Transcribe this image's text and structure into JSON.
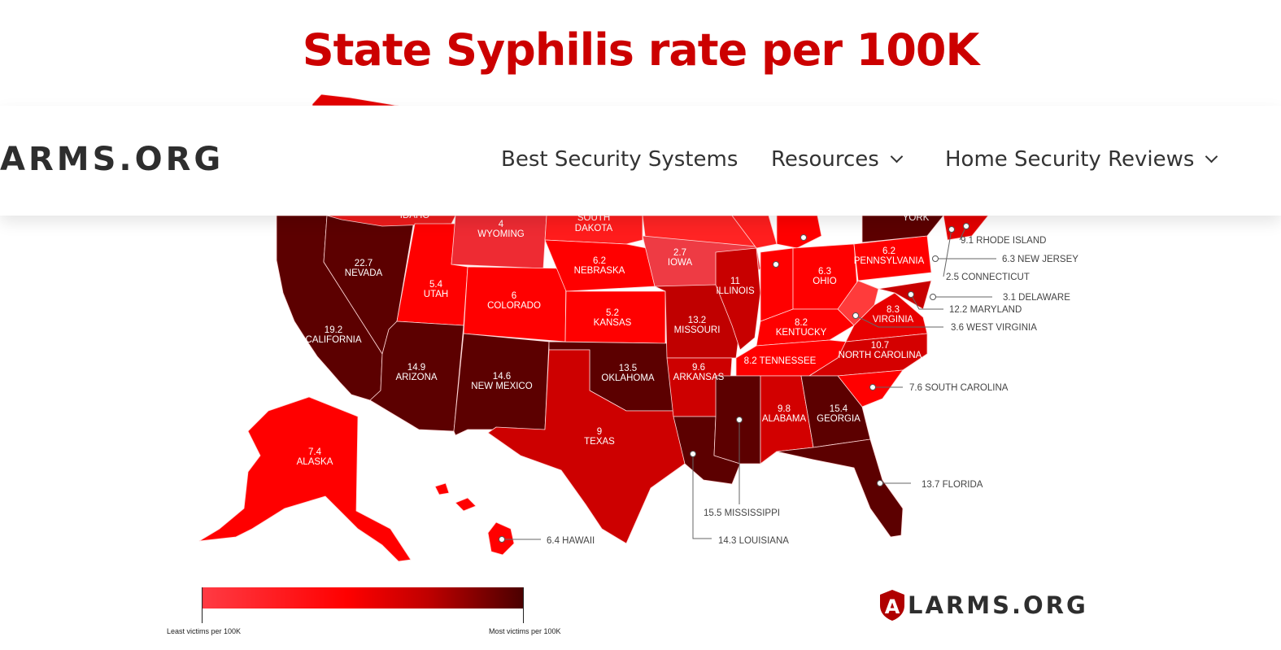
{
  "title": "State Syphilis rate per 100K",
  "nav": {
    "logo": "ARMS.ORG",
    "items": [
      {
        "label": "Best Security Systems",
        "has_dropdown": false
      },
      {
        "label": "Resources",
        "has_dropdown": true
      },
      {
        "label": "Home Security Reviews",
        "has_dropdown": true
      }
    ]
  },
  "legend": {
    "min_label": "Least victims per 100K",
    "max_label": "Most victims per 100K",
    "colors": [
      "#ff3b44",
      "#ff0000",
      "#c00000",
      "#4a0000"
    ]
  },
  "footer_logo": {
    "letter": "A",
    "text": "LARMS.ORG"
  },
  "map_labels": {
    "idaho": "IDAHO",
    "new_york": "YORK",
    "south_dakota_value": "SOUTH",
    "south_dakota_name": "DAKOTA"
  },
  "chart_data": {
    "type": "choropleth",
    "title": "State Syphilis rate per 100K",
    "states": [
      {
        "name": "WYOMING",
        "value": "4"
      },
      {
        "name": "NEVADA",
        "value": "22.7"
      },
      {
        "name": "UTAH",
        "value": "5.4"
      },
      {
        "name": "COLORADO",
        "value": "6"
      },
      {
        "name": "NEBRASKA",
        "value": "6.2"
      },
      {
        "name": "IOWA",
        "value": "2.7"
      },
      {
        "name": "ILLINOIS",
        "value": "11"
      },
      {
        "name": "OHIO",
        "value": "6.3"
      },
      {
        "name": "PENNSYLVANIA",
        "value": "6.2"
      },
      {
        "name": "CALIFORNIA",
        "value": "19.2"
      },
      {
        "name": "KANSAS",
        "value": "5.2"
      },
      {
        "name": "MISSOURI",
        "value": "13.2"
      },
      {
        "name": "KENTUCKY",
        "value": "8.2"
      },
      {
        "name": "VIRGINIA",
        "value": "8.3"
      },
      {
        "name": "ARIZONA",
        "value": "14.9"
      },
      {
        "name": "NEW MEXICO",
        "value": "14.6"
      },
      {
        "name": "OKLAHOMA",
        "value": "13.5"
      },
      {
        "name": "ARKANSAS",
        "value": "9.6"
      },
      {
        "name": "TENNESSEE",
        "value": "8.2"
      },
      {
        "name": "NORTH CAROLINA",
        "value": "10.7"
      },
      {
        "name": "TEXAS",
        "value": "9"
      },
      {
        "name": "ALABAMA",
        "value": "9.8"
      },
      {
        "name": "GEORGIA",
        "value": "15.4"
      },
      {
        "name": "ALASKA",
        "value": "7.4"
      }
    ],
    "callouts": [
      {
        "name": "RHODE ISLAND",
        "value": "9.1"
      },
      {
        "name": "NEW JERSEY",
        "value": "6.3"
      },
      {
        "name": "CONNECTICUT",
        "value": "2.5"
      },
      {
        "name": "DELAWARE",
        "value": "3.1"
      },
      {
        "name": "MARYLAND",
        "value": "12.2"
      },
      {
        "name": "WEST VIRGINIA",
        "value": "3.6"
      },
      {
        "name": "SOUTH CAROLINA",
        "value": "7.6"
      },
      {
        "name": "FLORIDA",
        "value": "13.7"
      },
      {
        "name": "MISSISSIPPI",
        "value": "15.5"
      },
      {
        "name": "LOUISIANA",
        "value": "14.3"
      },
      {
        "name": "HAWAII",
        "value": "6.4"
      }
    ],
    "color_scale": {
      "low": "#ff3b44",
      "high": "#4a0000"
    }
  }
}
